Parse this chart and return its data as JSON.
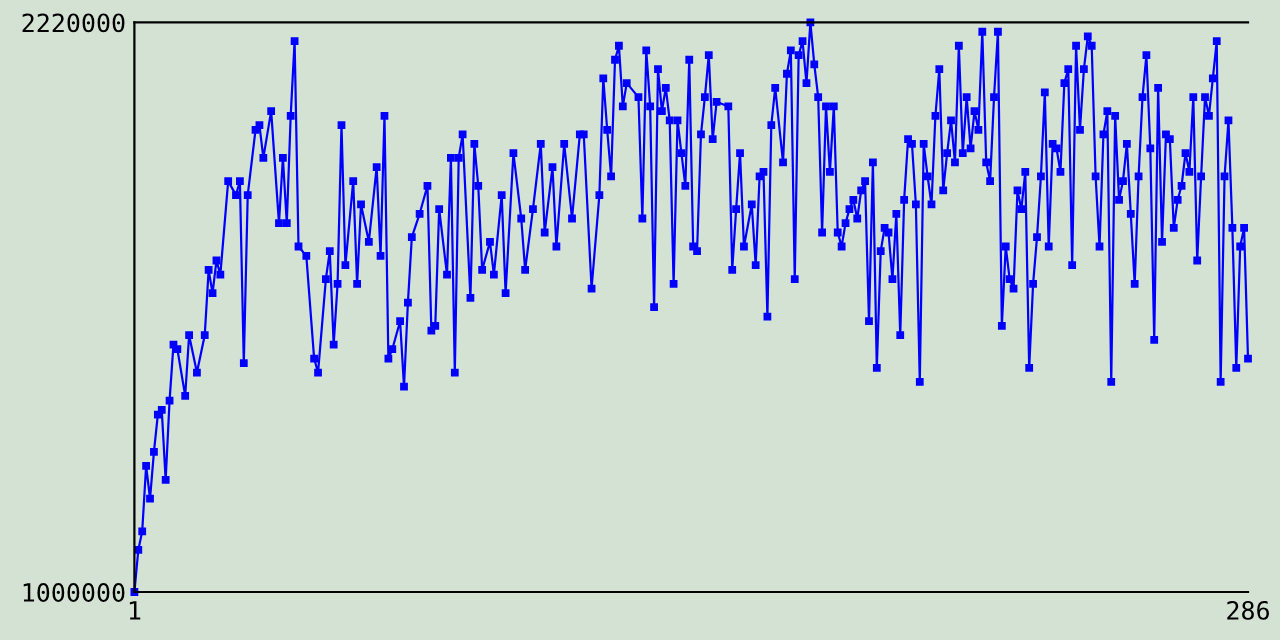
{
  "chart_data": {
    "type": "line",
    "x": [
      1,
      2,
      3,
      4,
      5,
      6,
      7,
      8,
      9,
      10,
      11,
      12,
      14,
      15,
      17,
      19,
      20,
      21,
      22,
      23,
      25,
      27,
      28,
      29,
      30,
      32,
      33,
      34,
      36,
      38,
      39,
      40,
      41,
      42,
      43,
      45,
      47,
      48,
      50,
      51,
      52,
      53,
      54,
      55,
      57,
      58,
      59,
      61,
      63,
      64,
      65,
      66,
      67,
      69,
      70,
      71,
      72,
      74,
      76,
      77,
      78,
      79,
      81,
      82,
      83,
      84,
      85,
      87,
      88,
      89,
      90,
      92,
      93,
      95,
      96,
      98,
      100,
      101,
      103,
      105,
      106,
      108,
      109,
      111,
      113,
      115,
      116,
      118,
      120,
      121,
      122,
      123,
      124,
      125,
      126,
      127,
      130,
      131,
      132,
      133,
      134,
      135,
      136,
      137,
      138,
      139,
      140,
      141,
      142,
      143,
      144,
      145,
      146,
      147,
      148,
      149,
      150,
      153,
      154,
      155,
      156,
      157,
      159,
      160,
      161,
      162,
      163,
      164,
      165,
      167,
      168,
      169,
      170,
      171,
      172,
      173,
      174,
      175,
      176,
      177,
      178,
      179,
      180,
      181,
      182,
      183,
      184,
      185,
      186,
      187,
      188,
      189,
      190,
      191,
      192,
      193,
      194,
      195,
      196,
      197,
      198,
      199,
      200,
      201,
      202,
      203,
      204,
      205,
      206,
      207,
      208,
      209,
      210,
      211,
      212,
      213,
      214,
      215,
      216,
      217,
      218,
      219,
      220,
      221,
      222,
      223,
      224,
      225,
      226,
      227,
      228,
      229,
      230,
      231,
      232,
      233,
      234,
      235,
      236,
      237,
      238,
      239,
      240,
      241,
      242,
      243,
      244,
      245,
      246,
      247,
      248,
      249,
      250,
      251,
      252,
      253,
      254,
      255,
      256,
      257,
      258,
      259,
      260,
      261,
      262,
      263,
      264,
      265,
      266,
      267,
      268,
      269,
      270,
      271,
      272,
      273,
      274,
      275,
      276,
      277,
      278,
      279,
      280,
      281,
      282,
      283,
      284,
      285,
      286
    ],
    "series": [
      {
        "color": "#0000ff",
        "values": [
          1000000,
          1090000,
          1130000,
          1270000,
          1200000,
          1300000,
          1380000,
          1390000,
          1240000,
          1410000,
          1530000,
          1520000,
          1420000,
          1550000,
          1470000,
          1550000,
          1690000,
          1640000,
          1710000,
          1680000,
          1880000,
          1850000,
          1880000,
          1490000,
          1850000,
          1990000,
          2000000,
          1930000,
          2030000,
          1790000,
          1930000,
          1790000,
          2020000,
          2180000,
          1740000,
          1720000,
          1500000,
          1470000,
          1670000,
          1730000,
          1530000,
          1660000,
          2000000,
          1700000,
          1880000,
          1660000,
          1830000,
          1750000,
          1910000,
          1720000,
          2020000,
          1500000,
          1520000,
          1580000,
          1440000,
          1620000,
          1760000,
          1810000,
          1870000,
          1560000,
          1570000,
          1820000,
          1680000,
          1930000,
          1470000,
          1930000,
          1980000,
          1630000,
          1960000,
          1870000,
          1690000,
          1750000,
          1680000,
          1850000,
          1640000,
          1940000,
          1800000,
          1690000,
          1820000,
          1960000,
          1770000,
          1910000,
          1740000,
          1960000,
          1800000,
          1980000,
          1980000,
          1650000,
          1850000,
          2100000,
          1990000,
          1890000,
          2140000,
          2170000,
          2040000,
          2090000,
          2060000,
          1800000,
          2160000,
          2040000,
          1610000,
          2120000,
          2030000,
          2080000,
          2010000,
          1660000,
          2010000,
          1940000,
          1870000,
          2140000,
          1740000,
          1730000,
          1980000,
          2060000,
          2150000,
          1970000,
          2050000,
          2040000,
          1690000,
          1820000,
          1940000,
          1740000,
          1830000,
          1700000,
          1890000,
          1900000,
          1590000,
          2000000,
          2080000,
          1920000,
          2110000,
          2160000,
          1670000,
          2150000,
          2180000,
          2090000,
          2220000,
          2130000,
          2060000,
          1770000,
          2040000,
          1900000,
          2040000,
          1770000,
          1740000,
          1790000,
          1820000,
          1840000,
          1800000,
          1860000,
          1880000,
          1580000,
          1920000,
          1480000,
          1730000,
          1780000,
          1770000,
          1670000,
          1810000,
          1550000,
          1840000,
          1970000,
          1960000,
          1830000,
          1450000,
          1960000,
          1890000,
          1830000,
          2020000,
          2120000,
          1860000,
          1940000,
          2010000,
          1920000,
          2170000,
          1940000,
          2060000,
          1950000,
          2030000,
          1990000,
          2200000,
          1920000,
          1880000,
          2060000,
          2200000,
          1570000,
          1740000,
          1670000,
          1650000,
          1860000,
          1820000,
          1900000,
          1480000,
          1660000,
          1760000,
          1890000,
          2070000,
          1740000,
          1960000,
          1950000,
          1900000,
          2090000,
          2120000,
          1700000,
          2170000,
          1990000,
          2120000,
          2190000,
          2170000,
          1890000,
          1740000,
          1980000,
          2030000,
          1450000,
          2020000,
          1840000,
          1880000,
          1960000,
          1810000,
          1660000,
          1890000,
          2060000,
          2150000,
          1950000,
          1540000,
          2080000,
          1750000,
          1980000,
          1970000,
          1780000,
          1840000,
          1870000,
          1940000,
          1900000,
          2060000,
          1710000,
          1890000,
          2060000,
          2020000,
          2100000,
          2180000,
          1450000,
          1890000,
          2010000,
          1780000,
          1480000,
          1740000,
          1780000,
          1500000
        ]
      }
    ],
    "xlim": [
      1,
      286
    ],
    "xticks": [
      1,
      286
    ],
    "ylim": [
      1000000,
      2220000
    ],
    "yticks": [
      1000000,
      2220000
    ],
    "marker": "square",
    "line_style": "solid",
    "grid": false
  }
}
